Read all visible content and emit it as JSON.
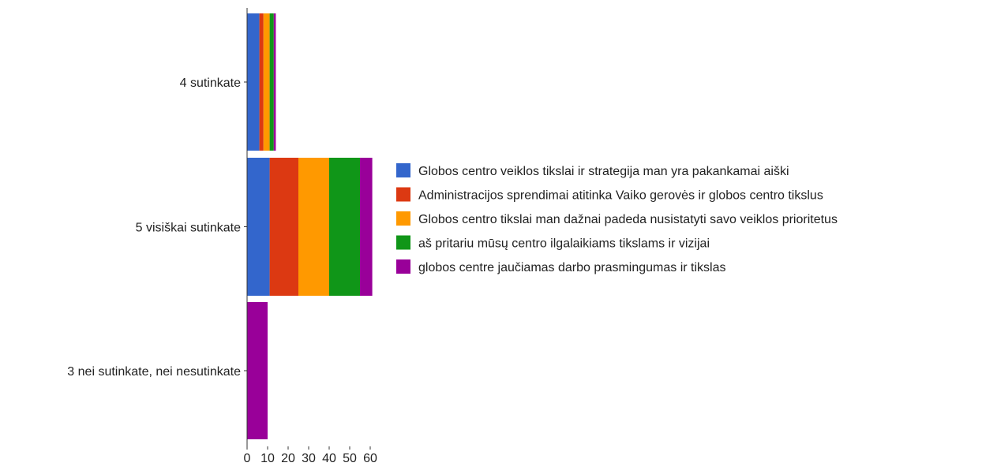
{
  "chart_data": {
    "type": "bar",
    "orientation": "horizontal",
    "stacked": true,
    "title": "",
    "xlabel": "",
    "ylabel": "",
    "categories": [
      "4 sutinkate",
      "5 visiškai sutinkate",
      "3 nei sutinkate, nei nesutinkate"
    ],
    "series": [
      {
        "name": "Globos centro veiklos tikslai ir strategija man yra pakankamai aiški",
        "color": "#3366cc",
        "values": [
          6,
          11,
          0
        ]
      },
      {
        "name": "Administracijos sprendimai atitinka Vaiko gerovės ir globos centro tikslus",
        "color": "#dc3912",
        "values": [
          2,
          14,
          0
        ]
      },
      {
        "name": "Globos centro tikslai man dažnai padeda nusistatyti savo veiklos prioritetus",
        "color": "#ff9900",
        "values": [
          3,
          15,
          0
        ]
      },
      {
        "name": "aš pritariu mūsų centro ilgalaikiams tikslams ir vizijai",
        "color": "#109618",
        "values": [
          2,
          15,
          0
        ]
      },
      {
        "name": "globos centre jaučiamas darbo prasmingumas ir tikslas",
        "color": "#990099",
        "values": [
          1,
          6,
          10
        ]
      }
    ],
    "xlim": [
      0,
      60
    ],
    "xticks": [
      "0",
      "10",
      "20",
      "30",
      "40",
      "50",
      "60"
    ],
    "grid": false,
    "legend_position": "right"
  }
}
